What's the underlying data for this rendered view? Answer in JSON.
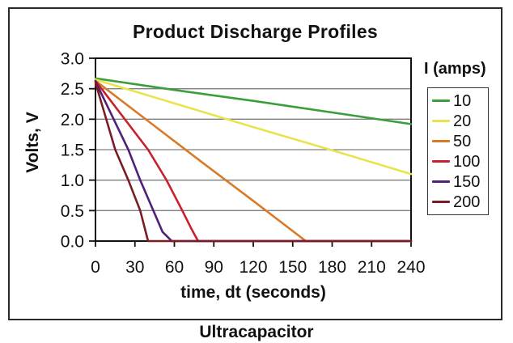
{
  "caption": "Ultracapacitor",
  "chart_data": {
    "type": "line",
    "title": "Product Discharge Profiles",
    "xlabel": "time, dt (seconds)",
    "ylabel": "Volts, V",
    "legend_title": "I (amps)",
    "legend_position": "right",
    "grid": "horizontal",
    "xlim": [
      0,
      240
    ],
    "ylim": [
      0.0,
      3.0
    ],
    "xticks": [
      0,
      30,
      60,
      90,
      120,
      150,
      180,
      210,
      240
    ],
    "yticks": [
      0.0,
      0.5,
      1.0,
      1.5,
      2.0,
      2.5,
      3.0
    ],
    "colors": {
      "grid": "#7f7f7f",
      "axis": "#111111",
      "text": "#111111"
    },
    "series": [
      {
        "name": "10",
        "color": "#3a9e3a",
        "points": [
          [
            0,
            2.67
          ],
          [
            60,
            2.48
          ],
          [
            120,
            2.3
          ],
          [
            180,
            2.11
          ],
          [
            240,
            1.92
          ]
        ]
      },
      {
        "name": "20",
        "color": "#e8e44e",
        "points": [
          [
            0,
            2.65
          ],
          [
            60,
            2.26
          ],
          [
            120,
            1.87
          ],
          [
            180,
            1.49
          ],
          [
            240,
            1.1
          ]
        ]
      },
      {
        "name": "50",
        "color": "#d97a26",
        "points": [
          [
            0,
            2.63
          ],
          [
            40,
            1.97
          ],
          [
            80,
            1.31
          ],
          [
            120,
            0.66
          ],
          [
            160,
            0
          ],
          [
            240,
            0
          ]
        ]
      },
      {
        "name": "100",
        "color": "#c8202d",
        "points": [
          [
            0,
            2.63
          ],
          [
            40,
            1.5
          ],
          [
            54,
            1.0
          ],
          [
            66,
            0.5
          ],
          [
            73,
            0.2
          ],
          [
            78,
            0
          ],
          [
            240,
            0
          ]
        ]
      },
      {
        "name": "150",
        "color": "#4f2178",
        "points": [
          [
            0,
            2.62
          ],
          [
            25,
            1.5
          ],
          [
            34,
            1.0
          ],
          [
            44,
            0.5
          ],
          [
            51,
            0.15
          ],
          [
            58,
            0
          ],
          [
            240,
            0
          ]
        ]
      },
      {
        "name": "200",
        "color": "#7a1c24",
        "points": [
          [
            0,
            2.6
          ],
          [
            15,
            1.5
          ],
          [
            25,
            1.0
          ],
          [
            34,
            0.5
          ],
          [
            40,
            0
          ],
          [
            240,
            0
          ]
        ]
      }
    ]
  }
}
